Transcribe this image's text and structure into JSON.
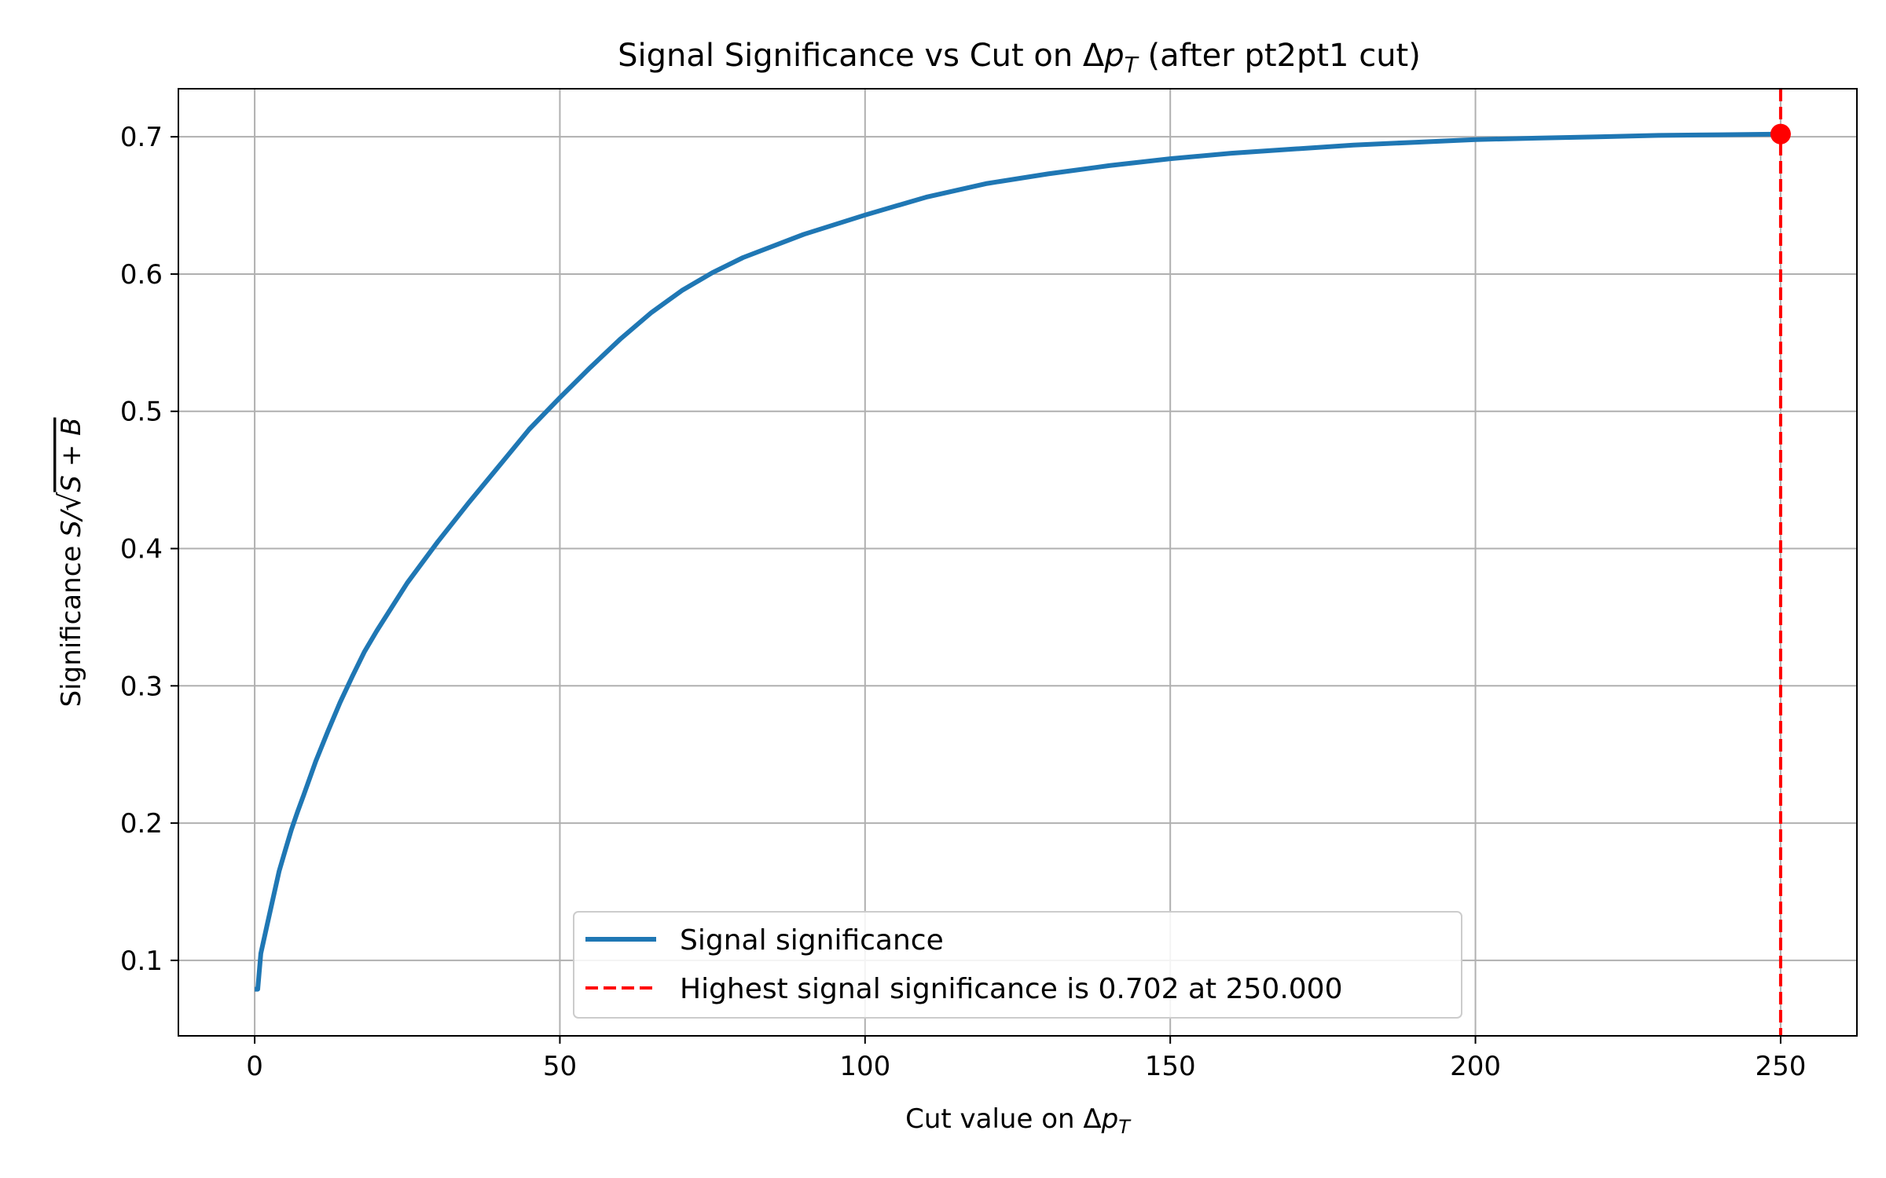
{
  "chart_data": {
    "type": "line",
    "title_main": "Signal Significance vs Cut on Δ",
    "title_var": "p",
    "title_sub": "T",
    "title_tail": " (after pt2pt1 cut)",
    "xlabel_main": "Cut value on Δ",
    "xlabel_var": "p",
    "xlabel_sub": "T",
    "ylabel_main": "Significance ",
    "ylabel_math_num": "S/",
    "ylabel_math_root": "S + B",
    "xlim": [
      -12.5,
      262.5
    ],
    "ylim": [
      0.045,
      0.735
    ],
    "xticks": [
      0,
      50,
      100,
      150,
      200,
      250
    ],
    "yticks": [
      0.1,
      0.2,
      0.3,
      0.4,
      0.5,
      0.6,
      0.7
    ],
    "xtick_labels": [
      "0",
      "50",
      "100",
      "150",
      "200",
      "250"
    ],
    "ytick_labels": [
      "0.1",
      "0.2",
      "0.3",
      "0.4",
      "0.5",
      "0.6",
      "0.7"
    ],
    "grid": true,
    "legend_position": "lower-center",
    "series": [
      {
        "name": "Signal significance",
        "color": "#1f77b4",
        "style": "solid",
        "x": [
          0,
          0.5,
          1,
          2,
          3,
          4,
          5,
          6,
          7,
          8,
          10,
          12,
          14,
          16,
          18,
          20,
          25,
          30,
          35,
          40,
          45,
          50,
          55,
          60,
          65,
          70,
          75,
          80,
          90,
          100,
          110,
          120,
          130,
          140,
          150,
          160,
          170,
          180,
          190,
          200,
          210,
          220,
          230,
          240,
          250
        ],
        "y": [
          0.079,
          0.079,
          0.105,
          0.125,
          0.145,
          0.165,
          0.18,
          0.195,
          0.208,
          0.22,
          0.245,
          0.267,
          0.288,
          0.307,
          0.325,
          0.34,
          0.375,
          0.405,
          0.433,
          0.46,
          0.487,
          0.51,
          0.532,
          0.553,
          0.572,
          0.588,
          0.601,
          0.612,
          0.629,
          0.643,
          0.656,
          0.666,
          0.673,
          0.679,
          0.684,
          0.688,
          0.691,
          0.694,
          0.696,
          0.698,
          0.699,
          0.7,
          0.701,
          0.7015,
          0.702
        ]
      }
    ],
    "highlight": {
      "label": "Highest signal significance is 0.702 at 250.000",
      "x": 250,
      "y": 0.702,
      "color": "#ff0000",
      "style": "dashed"
    }
  }
}
